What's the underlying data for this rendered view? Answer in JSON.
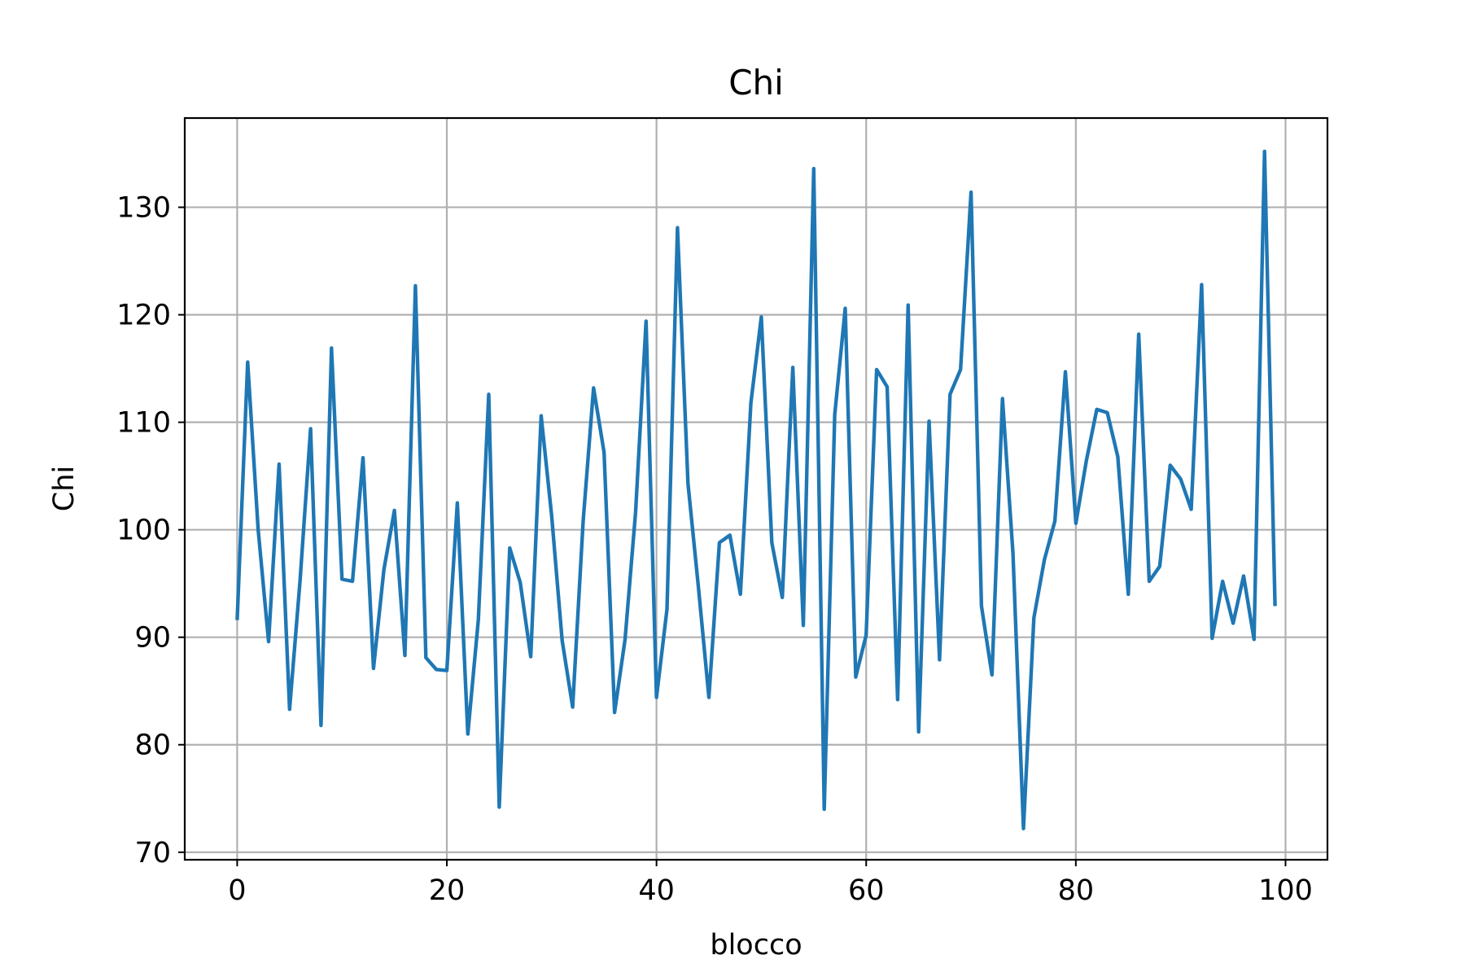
{
  "chart_data": {
    "type": "line",
    "title": "Chi",
    "xlabel": "blocco",
    "ylabel": "Chi",
    "xlim": [
      -5,
      104
    ],
    "ylim": [
      69.3,
      138.3
    ],
    "xticks": [
      0,
      20,
      40,
      60,
      80,
      100
    ],
    "yticks": [
      70,
      80,
      90,
      100,
      110,
      120,
      130
    ],
    "grid": true,
    "legend": "none",
    "colors": {
      "series": "#1f77b4"
    },
    "x": [
      0,
      1,
      2,
      3,
      4,
      5,
      6,
      7,
      8,
      9,
      10,
      11,
      12,
      13,
      14,
      15,
      16,
      17,
      18,
      19,
      20,
      21,
      22,
      23,
      24,
      25,
      26,
      27,
      28,
      29,
      30,
      31,
      32,
      33,
      34,
      35,
      36,
      37,
      38,
      39,
      40,
      41,
      42,
      43,
      44,
      45,
      46,
      47,
      48,
      49,
      50,
      51,
      52,
      53,
      54,
      55,
      56,
      57,
      58,
      59,
      60,
      61,
      62,
      63,
      64,
      65,
      66,
      67,
      68,
      69,
      70,
      71,
      72,
      73,
      74,
      75,
      76,
      77,
      78,
      79,
      80,
      81,
      82,
      83,
      84,
      85,
      86,
      87,
      88,
      89,
      90,
      91,
      92,
      93,
      94,
      95,
      96,
      97,
      98,
      99
    ],
    "values": [
      91.6,
      115.6,
      100.0,
      89.6,
      106.1,
      83.3,
      95.3,
      109.4,
      81.8,
      116.9,
      95.4,
      95.2,
      106.7,
      87.1,
      96.3,
      101.8,
      88.3,
      122.7,
      88.1,
      87.0,
      86.9,
      102.5,
      81.0,
      91.6,
      112.6,
      74.2,
      98.3,
      95.1,
      88.2,
      110.6,
      101.3,
      89.7,
      83.5,
      100.8,
      113.2,
      107.2,
      83.0,
      89.8,
      101.6,
      119.4,
      84.4,
      92.6,
      128.1,
      104.3,
      94.6,
      84.4,
      98.8,
      99.5,
      94.0,
      111.8,
      119.8,
      98.8,
      93.7,
      115.1,
      91.1,
      133.6,
      74.0,
      110.7,
      120.6,
      86.3,
      90.2,
      114.9,
      113.3,
      84.2,
      120.9,
      81.2,
      110.1,
      87.9,
      112.6,
      114.9,
      131.4,
      92.9,
      86.5,
      112.2,
      97.8,
      72.2,
      91.8,
      97.2,
      100.8,
      114.7,
      100.6,
      106.4,
      111.2,
      110.9,
      106.8,
      94.0,
      118.2,
      95.2,
      96.6,
      106.0,
      104.7,
      101.9,
      122.8,
      89.9,
      95.2,
      91.3,
      95.7,
      89.8,
      135.2,
      92.9
    ]
  }
}
